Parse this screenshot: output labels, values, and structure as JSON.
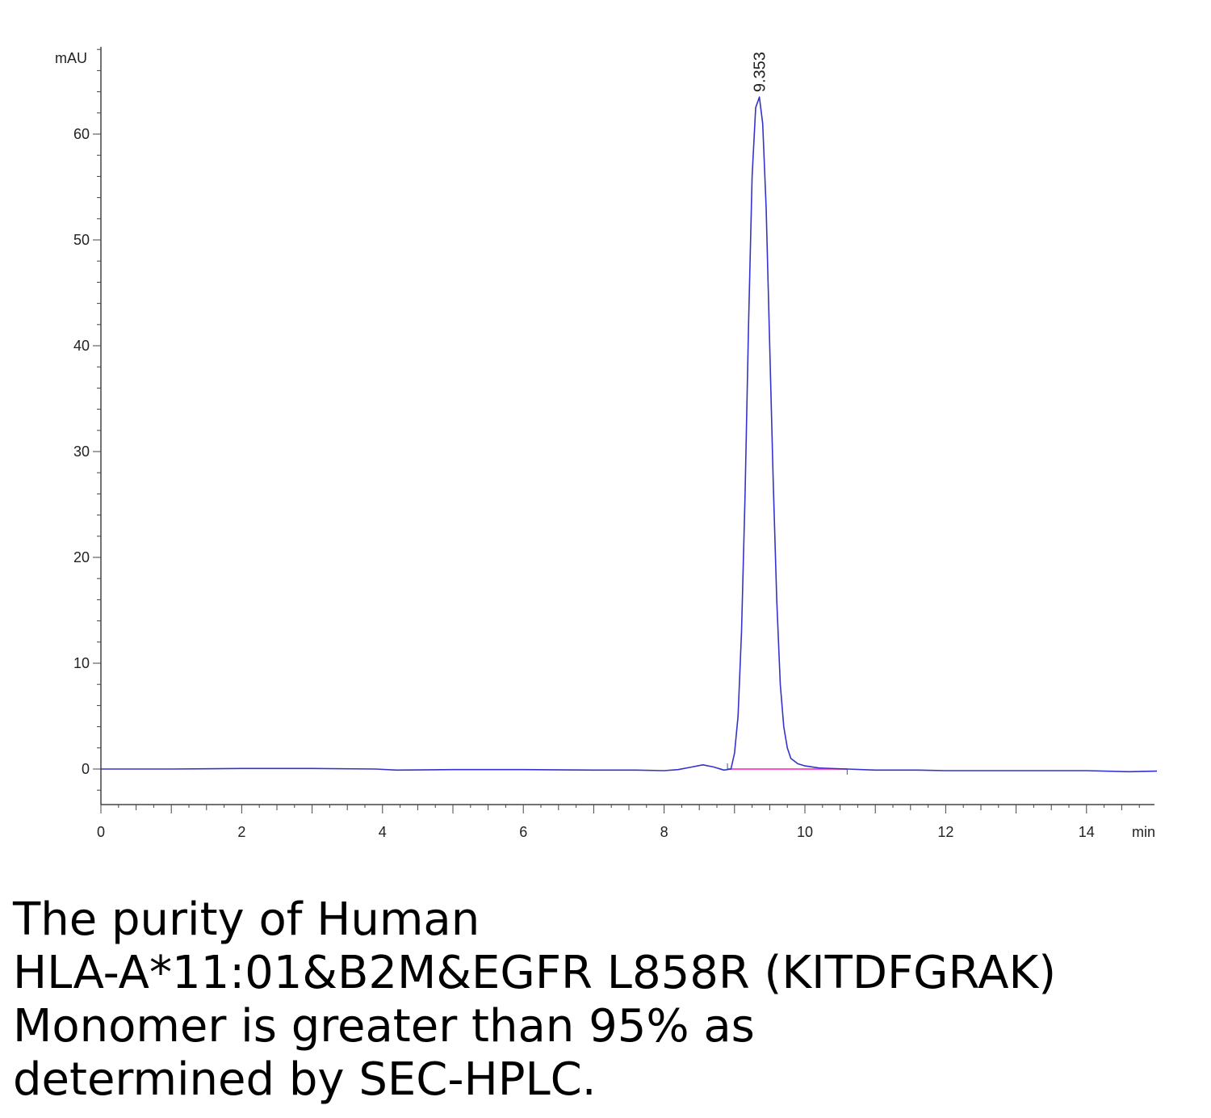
{
  "chart_data": {
    "type": "line",
    "xlabel": "min",
    "ylabel": "mAU",
    "xlim": [
      0,
      15
    ],
    "ylim": [
      -3.5,
      69
    ],
    "x_ticks": [
      0,
      2,
      4,
      6,
      8,
      10,
      12,
      14
    ],
    "y_ticks": [
      0,
      10,
      20,
      30,
      40,
      50,
      60
    ],
    "grid": false,
    "series": [
      {
        "color": "#3333cc",
        "x": [
          0,
          1,
          2,
          3,
          3.9,
          4.2,
          5,
          6,
          7,
          7.6,
          8,
          8.2,
          8.4,
          8.55,
          8.7,
          8.85,
          8.95,
          9.0,
          9.05,
          9.1,
          9.15,
          9.2,
          9.25,
          9.3,
          9.353,
          9.4,
          9.45,
          9.5,
          9.55,
          9.6,
          9.65,
          9.7,
          9.75,
          9.8,
          9.9,
          10.0,
          10.2,
          10.6,
          11.0,
          11.6,
          12,
          13,
          14,
          14.6,
          15
        ],
        "y": [
          0.0,
          0.0,
          0.05,
          0.05,
          0.0,
          -0.1,
          -0.05,
          -0.05,
          -0.1,
          -0.1,
          -0.15,
          -0.05,
          0.2,
          0.4,
          0.2,
          -0.1,
          0.0,
          1.5,
          5.0,
          13.0,
          26.0,
          42.0,
          56.0,
          62.5,
          63.5,
          61.0,
          53.0,
          40.0,
          27.0,
          16.0,
          8.0,
          4.0,
          2.0,
          1.0,
          0.5,
          0.3,
          0.1,
          0.0,
          -0.1,
          -0.1,
          -0.15,
          -0.15,
          -0.15,
          -0.25,
          -0.2
        ]
      }
    ],
    "baseline": {
      "color": "#ff55cc",
      "x": [
        8.9,
        10.6
      ],
      "y": [
        0.0,
        0.0
      ]
    },
    "annotations": [
      {
        "text": "9.353",
        "x": 9.353,
        "y": 63.5
      }
    ]
  },
  "caption": {
    "lines": [
      "The purity of Human",
      "HLA-A*11:01&B2M&EGFR L858R (KITDFGRAK)",
      "Monomer is greater than 95% as",
      "determined by SEC-HPLC."
    ]
  }
}
